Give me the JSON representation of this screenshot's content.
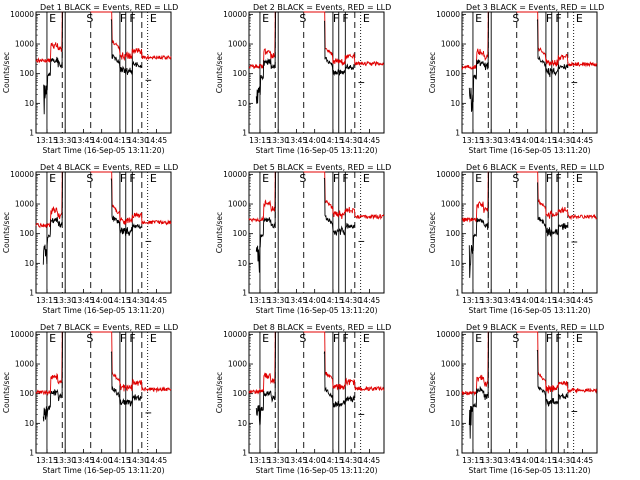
{
  "chart_data": {
    "type": "line",
    "grid_rows": 3,
    "grid_cols": 3,
    "series_legend_in_title": "BLACK = Events, RED = LLD",
    "colors": {
      "events": "#000000",
      "lld": "#e00000"
    },
    "shared": {
      "ylabel": "Counts/sec",
      "xlabel": "Start Time (16-Sep-05 13:11:20)",
      "ylim": [
        1,
        12000
      ],
      "yscale": "log",
      "xlim_min": [
        13.1,
        14.95
      ],
      "y_ticks": [
        1,
        10,
        100,
        1000,
        10000
      ],
      "y_tick_labels": [
        "1",
        "10",
        "100",
        "1000",
        "10000"
      ],
      "x_ticks": [
        13.25,
        13.5,
        13.75,
        14.0,
        14.25,
        14.5,
        14.75
      ],
      "x_tick_labels": [
        "13:15",
        "13:30",
        "13:45",
        "14:00",
        "14:15",
        "14:30",
        "14:45"
      ],
      "solid_vlines": [
        13.25,
        13.5,
        14.25,
        14.33,
        14.42
      ],
      "dashed_vlines": [
        13.46,
        13.85,
        14.55
      ],
      "dotted_vline": 14.63,
      "region_letters": [
        {
          "x": 13.28,
          "text": "E"
        },
        {
          "x": 13.79,
          "text": "S"
        },
        {
          "x": 14.25,
          "text": "F"
        },
        {
          "x": 14.38,
          "text": "F"
        },
        {
          "x": 14.66,
          "text": "E"
        }
      ],
      "events_gap": [
        13.85,
        14.13
      ]
    },
    "panels": [
      {
        "title": "Det 1",
        "events_level": 120,
        "lld_level": 350,
        "gap_fill": 0.0
      },
      {
        "title": "Det 2",
        "events_level": 100,
        "lld_level": 220,
        "gap_fill": 0.0
      },
      {
        "title": "Det 3",
        "events_level": 100,
        "lld_level": 210,
        "gap_fill": 0.0
      },
      {
        "title": "Det 4",
        "events_level": 110,
        "lld_level": 240,
        "gap_fill": 0.0
      },
      {
        "title": "Det 5",
        "events_level": 110,
        "lld_level": 380,
        "gap_fill": 0.0
      },
      {
        "title": "Det 6",
        "events_level": 105,
        "lld_level": 370,
        "gap_fill": 0.0
      },
      {
        "title": "Det 7",
        "events_level": 45,
        "lld_level": 140,
        "gap_fill": 0.0
      },
      {
        "title": "Det 8",
        "events_level": 40,
        "lld_level": 150,
        "gap_fill": 0.0
      },
      {
        "title": "Det 9",
        "events_level": 50,
        "lld_level": 130,
        "gap_fill": 0.0
      }
    ]
  }
}
